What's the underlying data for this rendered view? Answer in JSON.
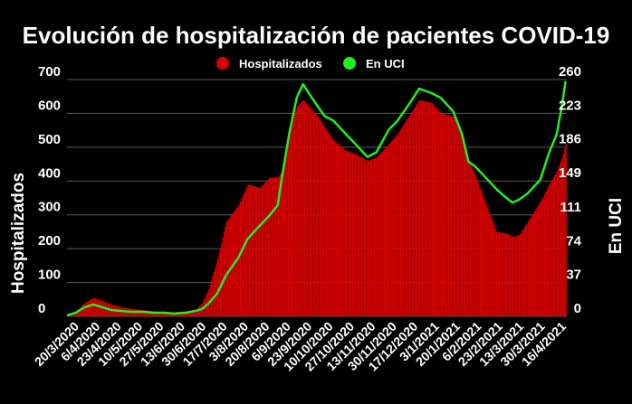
{
  "chart_data": {
    "type": "bar",
    "title": "Evolución de hospitalización de pacientes COVID-19",
    "ylabel": "Hospitalizados",
    "y2label": "En UCI",
    "ylim": [
      0,
      700
    ],
    "y2lim": [
      0,
      260
    ],
    "yticks": [
      0,
      100,
      200,
      300,
      400,
      500,
      600,
      700
    ],
    "y2ticks": [
      0,
      37,
      74,
      111,
      149,
      186,
      223,
      260
    ],
    "grid": true,
    "legend_position": "top",
    "colors": {
      "bars": "#dd0000",
      "line": "#22ee22",
      "background": "#000000",
      "grid": "#5a5a5a"
    },
    "x_tick_labels": [
      "20/3/2020",
      "6/4/2020",
      "23/4/2020",
      "10/5/2020",
      "27/5/2020",
      "13/6/2020",
      "30/6/2020",
      "17/7/2020",
      "3/8/2020",
      "20/8/2020",
      "6/9/2020",
      "23/9/2020",
      "10/10/2020",
      "27/10/2020",
      "13/11/2020",
      "30/11/2020",
      "17/12/2020",
      "3/1/2021",
      "20/1/2021",
      "6/2/2021",
      "23/2/2021",
      "13/3/2021",
      "30/3/2021",
      "16/4/2021"
    ],
    "series": [
      {
        "name": "Hospitalizados",
        "axis": "left",
        "type": "bar",
        "points": [
          [
            "2020-03-20",
            5
          ],
          [
            "2020-03-27",
            15
          ],
          [
            "2020-04-03",
            40
          ],
          [
            "2020-04-10",
            55
          ],
          [
            "2020-04-17",
            45
          ],
          [
            "2020-04-24",
            35
          ],
          [
            "2020-05-01",
            28
          ],
          [
            "2020-05-10",
            22
          ],
          [
            "2020-05-20",
            18
          ],
          [
            "2020-05-27",
            15
          ],
          [
            "2020-06-05",
            12
          ],
          [
            "2020-06-13",
            12
          ],
          [
            "2020-06-22",
            15
          ],
          [
            "2020-06-30",
            20
          ],
          [
            "2020-07-05",
            40
          ],
          [
            "2020-07-10",
            80
          ],
          [
            "2020-07-17",
            170
          ],
          [
            "2020-07-24",
            280
          ],
          [
            "2020-08-03",
            330
          ],
          [
            "2020-08-10",
            390
          ],
          [
            "2020-08-20",
            380
          ],
          [
            "2020-08-27",
            410
          ],
          [
            "2020-09-03",
            410
          ],
          [
            "2020-09-06",
            430
          ],
          [
            "2020-09-12",
            560
          ],
          [
            "2020-09-18",
            620
          ],
          [
            "2020-09-23",
            640
          ],
          [
            "2020-09-30",
            610
          ],
          [
            "2020-10-05",
            590
          ],
          [
            "2020-10-10",
            560
          ],
          [
            "2020-10-17",
            520
          ],
          [
            "2020-10-27",
            490
          ],
          [
            "2020-11-03",
            480
          ],
          [
            "2020-11-13",
            460
          ],
          [
            "2020-11-20",
            470
          ],
          [
            "2020-11-30",
            510
          ],
          [
            "2020-12-07",
            540
          ],
          [
            "2020-12-17",
            600
          ],
          [
            "2020-12-24",
            640
          ],
          [
            "2021-01-03",
            630
          ],
          [
            "2021-01-10",
            600
          ],
          [
            "2021-01-20",
            590
          ],
          [
            "2021-01-27",
            540
          ],
          [
            "2021-02-01",
            460
          ],
          [
            "2021-02-06",
            420
          ],
          [
            "2021-02-13",
            350
          ],
          [
            "2021-02-23",
            250
          ],
          [
            "2021-03-03",
            245
          ],
          [
            "2021-03-08",
            235
          ],
          [
            "2021-03-13",
            240
          ],
          [
            "2021-03-20",
            280
          ],
          [
            "2021-03-30",
            340
          ],
          [
            "2021-04-06",
            390
          ],
          [
            "2021-04-12",
            430
          ],
          [
            "2021-04-16",
            470
          ],
          [
            "2021-04-19",
            510
          ]
        ]
      },
      {
        "name": "En UCI",
        "axis": "right",
        "type": "line",
        "points": [
          [
            "2020-03-20",
            1
          ],
          [
            "2020-03-27",
            4
          ],
          [
            "2020-04-03",
            10
          ],
          [
            "2020-04-10",
            13
          ],
          [
            "2020-04-17",
            10
          ],
          [
            "2020-04-24",
            7
          ],
          [
            "2020-05-01",
            6
          ],
          [
            "2020-05-10",
            5
          ],
          [
            "2020-05-20",
            5
          ],
          [
            "2020-05-27",
            4
          ],
          [
            "2020-06-05",
            4
          ],
          [
            "2020-06-13",
            3
          ],
          [
            "2020-06-22",
            4
          ],
          [
            "2020-06-30",
            6
          ],
          [
            "2020-07-05",
            8
          ],
          [
            "2020-07-10",
            14
          ],
          [
            "2020-07-17",
            25
          ],
          [
            "2020-07-24",
            45
          ],
          [
            "2020-08-03",
            65
          ],
          [
            "2020-08-10",
            85
          ],
          [
            "2020-08-20",
            100
          ],
          [
            "2020-08-27",
            110
          ],
          [
            "2020-09-03",
            122
          ],
          [
            "2020-09-06",
            150
          ],
          [
            "2020-09-12",
            200
          ],
          [
            "2020-09-18",
            240
          ],
          [
            "2020-09-23",
            255
          ],
          [
            "2020-09-30",
            240
          ],
          [
            "2020-10-05",
            230
          ],
          [
            "2020-10-10",
            220
          ],
          [
            "2020-10-17",
            215
          ],
          [
            "2020-10-27",
            200
          ],
          [
            "2020-11-03",
            190
          ],
          [
            "2020-11-13",
            175
          ],
          [
            "2020-11-20",
            180
          ],
          [
            "2020-11-30",
            205
          ],
          [
            "2020-12-07",
            215
          ],
          [
            "2020-12-17",
            235
          ],
          [
            "2020-12-24",
            250
          ],
          [
            "2021-01-03",
            245
          ],
          [
            "2021-01-10",
            240
          ],
          [
            "2021-01-20",
            225
          ],
          [
            "2021-01-27",
            200
          ],
          [
            "2021-02-01",
            170
          ],
          [
            "2021-02-06",
            165
          ],
          [
            "2021-02-13",
            155
          ],
          [
            "2021-02-23",
            140
          ],
          [
            "2021-03-03",
            130
          ],
          [
            "2021-03-08",
            125
          ],
          [
            "2021-03-13",
            128
          ],
          [
            "2021-03-20",
            135
          ],
          [
            "2021-03-30",
            150
          ],
          [
            "2021-04-06",
            180
          ],
          [
            "2021-04-12",
            200
          ],
          [
            "2021-04-16",
            230
          ],
          [
            "2021-04-19",
            258
          ]
        ]
      }
    ]
  }
}
